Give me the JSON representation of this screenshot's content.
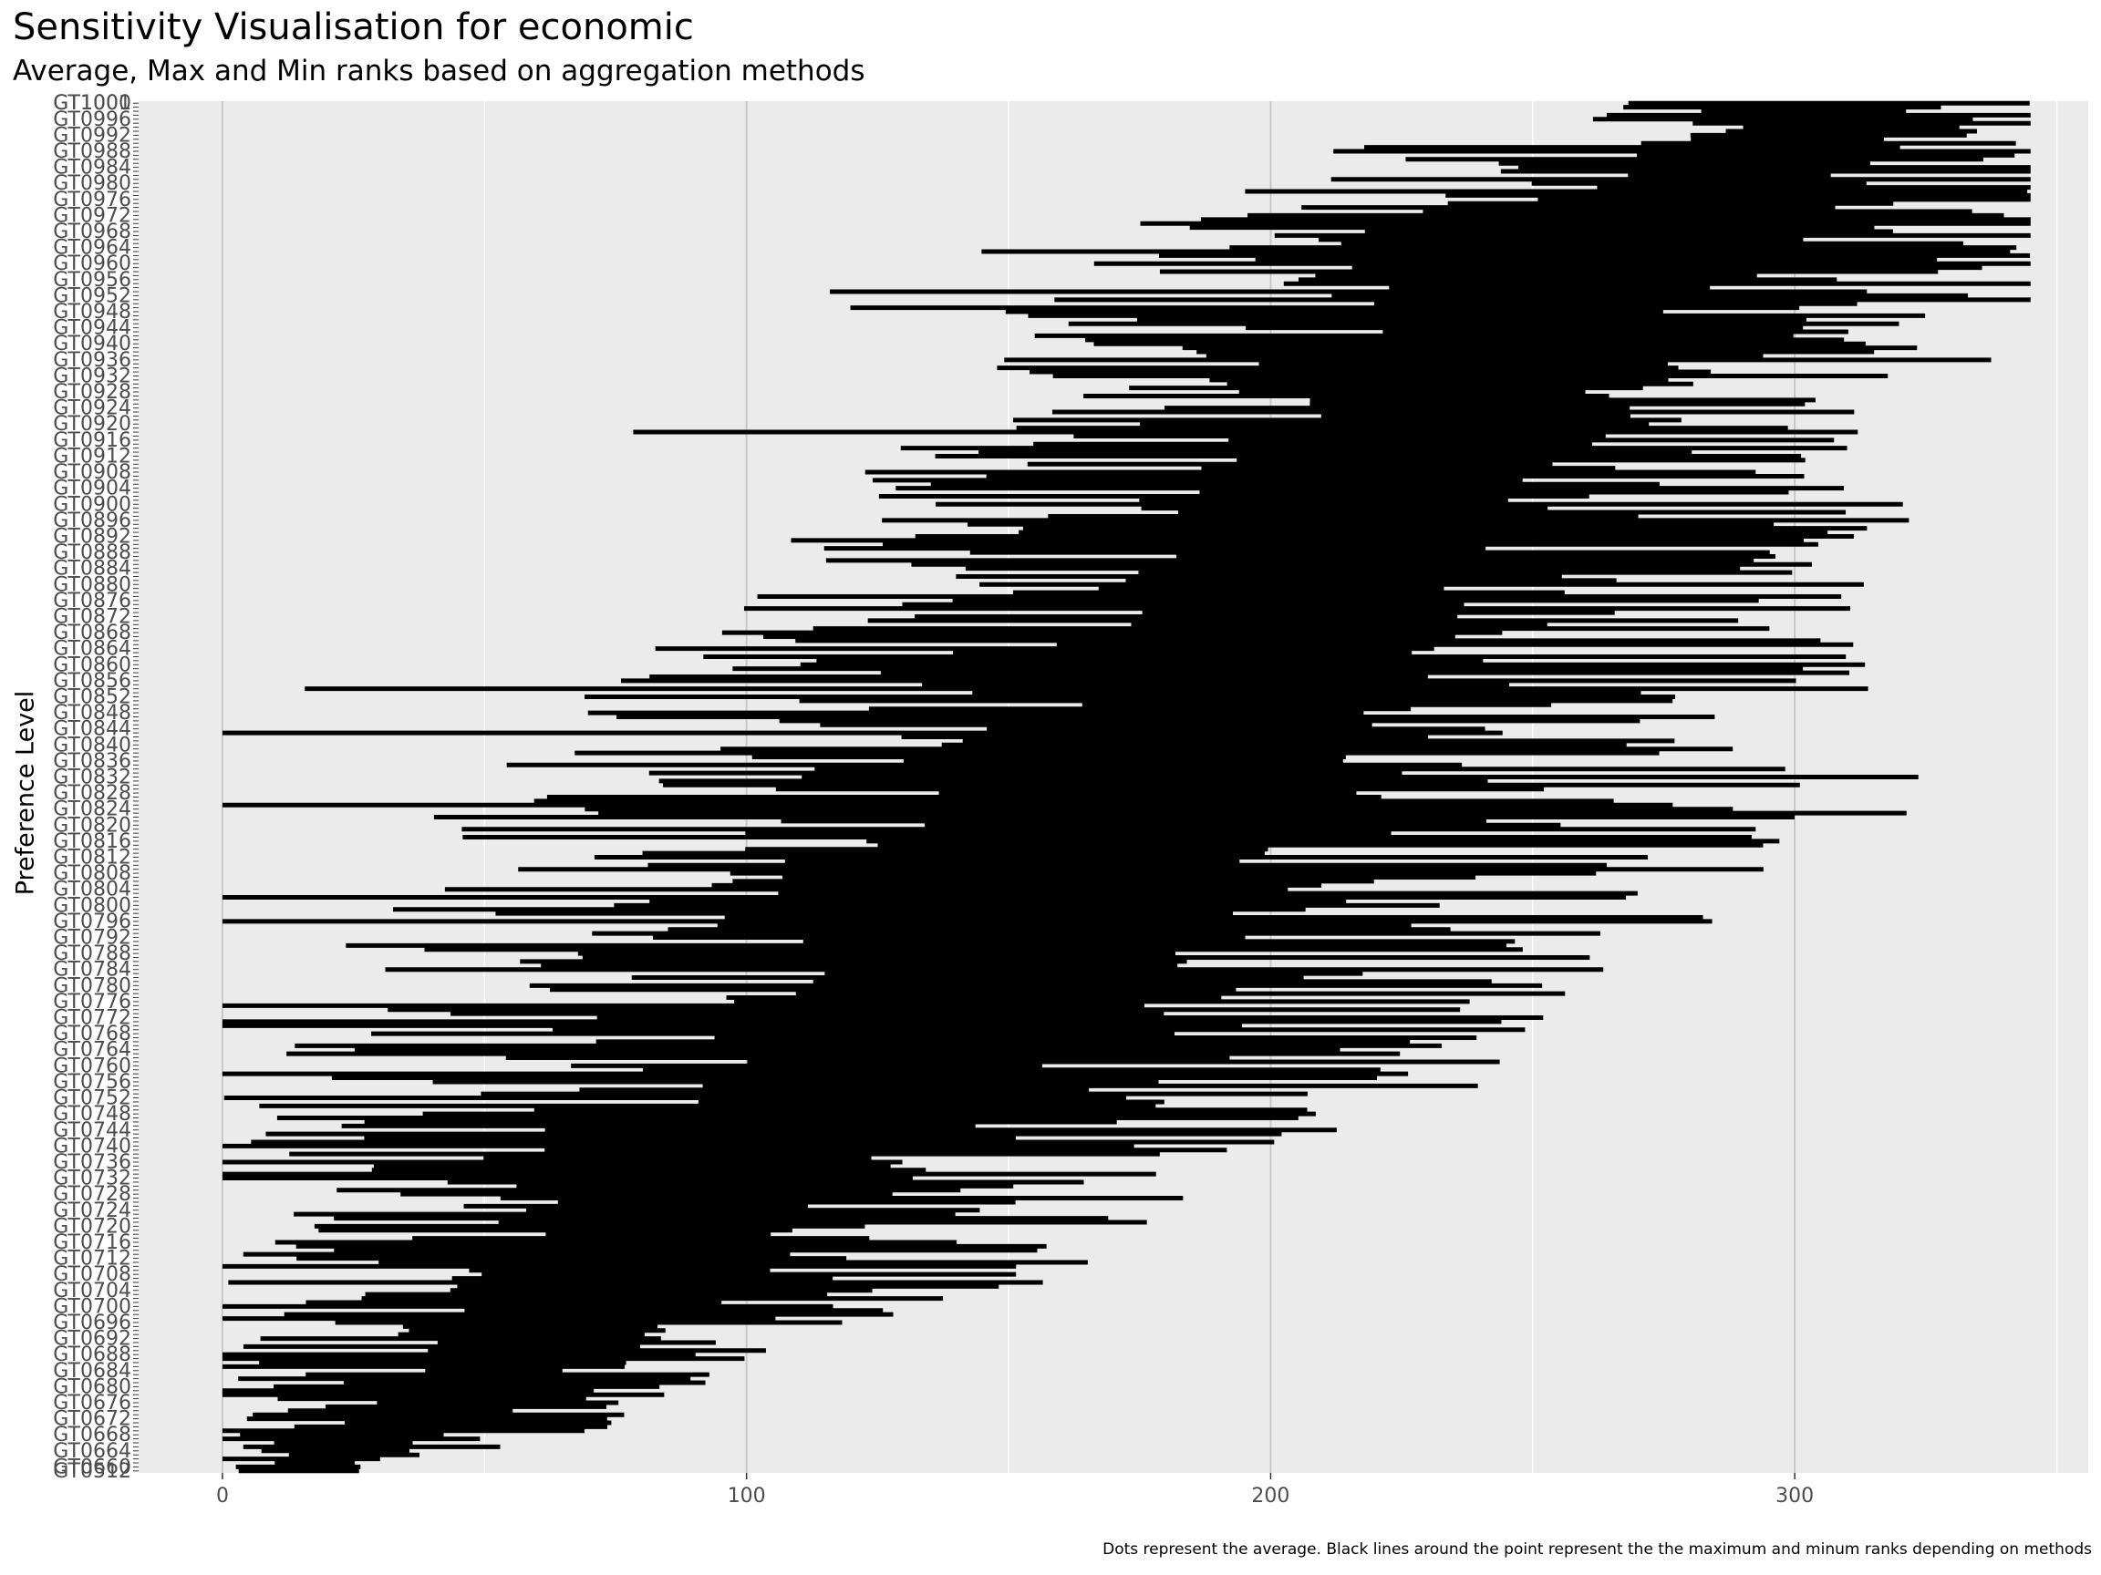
{
  "chart_data": {
    "type": "range",
    "title": "Sensitivity Visualisation for economic",
    "subtitle": "Average, Max and Min ranks based on aggregation methods",
    "ylabel": "Preference Level",
    "caption": "Dots represent the average. Black lines around the point represent the the maximum and minum ranks depending on methods",
    "xlim": [
      -16,
      356
    ],
    "x_ticks": [
      0,
      100,
      200,
      300
    ],
    "grid": true,
    "first_category": "GT1001",
    "last_category": "GT0512",
    "n_categories": 342,
    "anchors": [
      {
        "i": 0,
        "lo": 280,
        "hi": 341
      },
      {
        "i": 8,
        "lo": 260,
        "hi": 340
      },
      {
        "i": 20,
        "lo": 225,
        "hi": 335
      },
      {
        "i": 40,
        "lo": 185,
        "hi": 325
      },
      {
        "i": 60,
        "lo": 165,
        "hi": 320
      },
      {
        "i": 80,
        "lo": 155,
        "hi": 305
      },
      {
        "i": 100,
        "lo": 140,
        "hi": 295
      },
      {
        "i": 120,
        "lo": 125,
        "hi": 290
      },
      {
        "i": 140,
        "lo": 110,
        "hi": 285
      },
      {
        "i": 160,
        "lo": 92,
        "hi": 280
      },
      {
        "i": 180,
        "lo": 75,
        "hi": 265
      },
      {
        "i": 200,
        "lo": 62,
        "hi": 255
      },
      {
        "i": 220,
        "lo": 48,
        "hi": 240
      },
      {
        "i": 240,
        "lo": 36,
        "hi": 215
      },
      {
        "i": 260,
        "lo": 24,
        "hi": 180
      },
      {
        "i": 280,
        "lo": 16,
        "hi": 150
      },
      {
        "i": 300,
        "lo": 10,
        "hi": 120
      },
      {
        "i": 320,
        "lo": 6,
        "hi": 90
      },
      {
        "i": 335,
        "lo": 3,
        "hi": 50
      },
      {
        "i": 341,
        "lo": 2,
        "hi": 25
      }
    ],
    "spread": 0.55,
    "seed": 17
  }
}
